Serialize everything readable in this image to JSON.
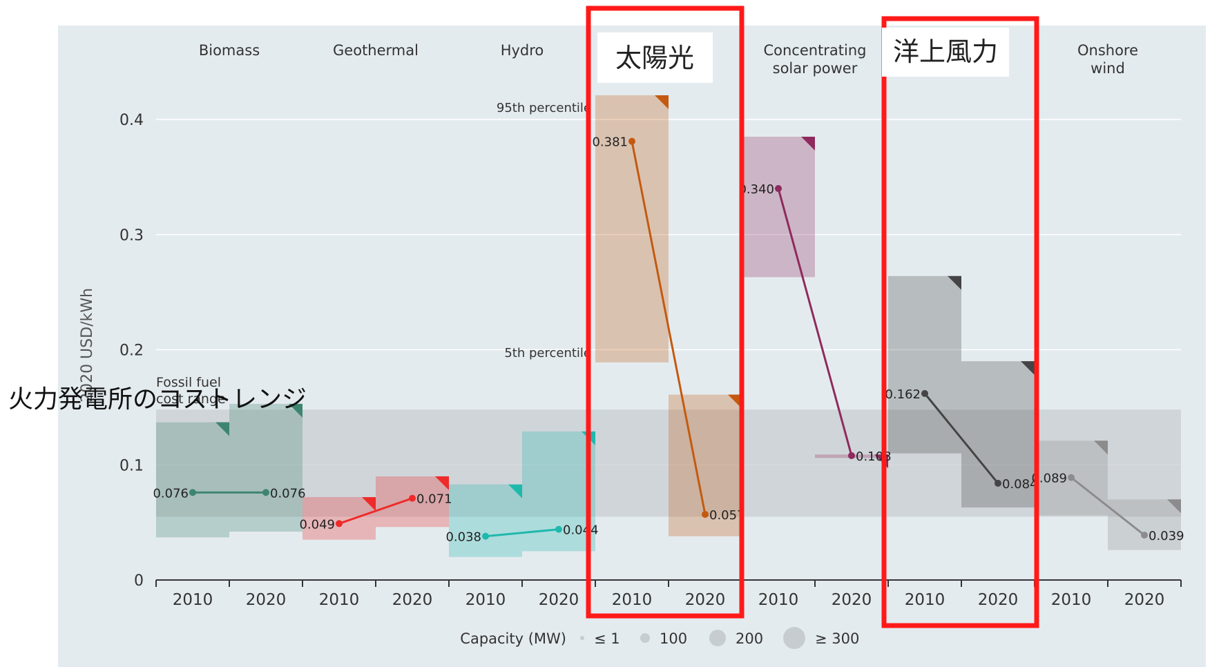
{
  "chart_data": {
    "type": "range_bar_line",
    "ylabel": "2020 USD/kWh",
    "ylim": [
      0,
      0.4
    ],
    "y_ticks": [
      "0",
      "0.1",
      "0.2",
      "0.3",
      "0.4"
    ],
    "grid": true,
    "colors": {
      "panel_bg": "#e4ebef",
      "fossil_band": "#c9ced1",
      "grid": "#ffffff",
      "highlight": "#ff1a1a"
    },
    "categories": [
      {
        "name": "Biomass",
        "color": "#3e8570",
        "x": [
          "2010",
          "2020"
        ],
        "values": [
          0.076,
          0.076
        ],
        "p95": [
          0.137,
          0.153
        ],
        "p5": [
          0.037,
          0.042
        ],
        "labels": [
          "0.076",
          "0.076"
        ]
      },
      {
        "name": "Geothermal",
        "color": "#ee2a2a",
        "x": [
          "2010",
          "2020"
        ],
        "values": [
          0.049,
          0.071
        ],
        "p95": [
          0.072,
          0.09
        ],
        "p5": [
          0.035,
          0.046
        ],
        "labels": [
          "0.049",
          "0.071"
        ]
      },
      {
        "name": "Hydro",
        "color": "#1fb8ad",
        "x": [
          "2010",
          "2020"
        ],
        "values": [
          0.038,
          0.044
        ],
        "p95": [
          0.083,
          0.129
        ],
        "p5": [
          0.02,
          0.025
        ],
        "labels": [
          "0.038",
          "0.044"
        ]
      },
      {
        "name": "",
        "color": "#c35a10",
        "x": [
          "2010",
          "2020"
        ],
        "values": [
          0.381,
          0.057
        ],
        "p95": [
          0.421,
          0.161
        ],
        "p5": [
          0.189,
          0.038
        ],
        "labels": [
          "0.381",
          "0.057"
        ]
      },
      {
        "name": "Concentrating\nsolar power",
        "color": "#8e2a5d",
        "x": [
          "2010",
          "2020"
        ],
        "values": [
          0.34,
          0.108
        ],
        "p95": [
          0.385,
          0.109
        ],
        "p5": [
          0.263,
          0.106
        ],
        "labels": [
          "0.340",
          "0.108"
        ]
      },
      {
        "name": "",
        "color": "#444444",
        "x": [
          "2010",
          "2020"
        ],
        "values": [
          0.162,
          0.084
        ],
        "p95": [
          0.264,
          0.19
        ],
        "p5": [
          0.11,
          0.063
        ],
        "labels": [
          "0.162",
          "0.084"
        ]
      },
      {
        "name": "Onshore\nwind",
        "color": "#8c8c8c",
        "x": [
          "2010",
          "2020"
        ],
        "values": [
          0.089,
          0.039
        ],
        "p95": [
          0.121,
          0.07
        ],
        "p5": [
          0.056,
          0.026
        ],
        "labels": [
          "0.089",
          "0.039"
        ]
      }
    ],
    "fossil_range": [
      0.055,
      0.148
    ],
    "annotations": {
      "p95": "95th percentile",
      "p5": "5th percentile",
      "fossil": "Fossil fuel cost range"
    },
    "overlays": {
      "fossil_jp": "火力発電所のコストレンジ",
      "solar_jp": "太陽光",
      "offshore_jp": "洋上風力"
    },
    "legend": {
      "title": "Capacity (MW)",
      "items": [
        "≤ 1",
        "100",
        "200",
        "≥ 300"
      ]
    }
  }
}
